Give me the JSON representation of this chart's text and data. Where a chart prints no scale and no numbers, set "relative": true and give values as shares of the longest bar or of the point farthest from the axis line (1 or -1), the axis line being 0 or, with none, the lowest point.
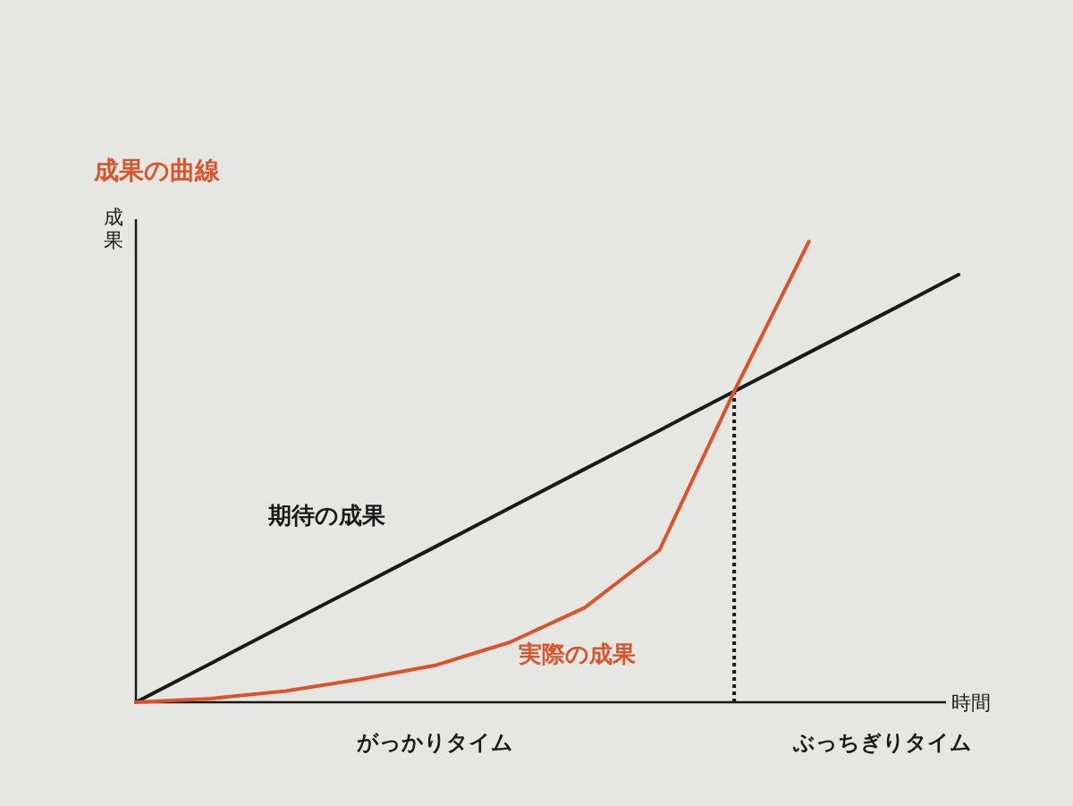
{
  "chart_data": {
    "type": "line",
    "title": "成果の曲線",
    "xlabel": "時間",
    "ylabel": "成果",
    "relative": true,
    "categories": [
      null,
      null,
      null,
      null,
      null,
      null,
      null,
      null,
      null,
      null,
      null,
      null
    ],
    "series": [
      {
        "name": "期待の成果",
        "color": "#1a1a1a",
        "values": [
          0,
          0.084,
          0.169,
          0.253,
          0.337,
          0.422,
          0.506,
          0.59,
          0.675,
          0.759,
          0.843,
          0.928
        ]
      },
      {
        "name": "実際の成果",
        "color": "#d9542b",
        "values": [
          0,
          0.008,
          0.024,
          0.05,
          0.08,
          0.13,
          0.205,
          0.33,
          0.675,
          1,
          null,
          null
        ]
      }
    ],
    "annotations": [
      "がっかりタイム",
      "ぶっちぎりタイム"
    ]
  }
}
